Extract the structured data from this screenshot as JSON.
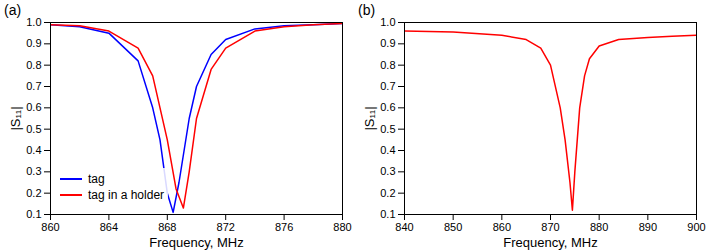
{
  "chart_data": [
    {
      "type": "line",
      "title": "(a)",
      "xlabel": "Frequency, MHz",
      "ylabel": "|S₁₁|",
      "xlim": [
        860,
        880
      ],
      "xticks": [
        860,
        864,
        868,
        872,
        876,
        880
      ],
      "ylim": [
        0.1,
        1.0
      ],
      "yticks": [
        0.1,
        0.2,
        0.3,
        0.4,
        0.5,
        0.6,
        0.7,
        0.8,
        0.9,
        {
          "value": 1,
          "label": "1.0"
        }
      ],
      "grid": false,
      "legend": "lower left",
      "series": [
        {
          "name": "tag",
          "color": "#0000ff",
          "x": [
            860,
            862,
            864,
            866,
            867,
            867.5,
            868,
            868.4,
            868.8,
            869.5,
            870,
            871,
            872,
            874,
            876,
            878,
            880
          ],
          "values": [
            0.99,
            0.98,
            0.95,
            0.82,
            0.6,
            0.45,
            0.2,
            0.11,
            0.25,
            0.55,
            0.7,
            0.85,
            0.92,
            0.97,
            0.985,
            0.99,
            0.995
          ]
        },
        {
          "name": "tag in a holder",
          "color": "#ff0000",
          "x": [
            860,
            862,
            864,
            866,
            867,
            868,
            868.6,
            869.1,
            869.5,
            870,
            871,
            872,
            874,
            876,
            878,
            880
          ],
          "values": [
            0.99,
            0.985,
            0.96,
            0.88,
            0.75,
            0.45,
            0.22,
            0.13,
            0.3,
            0.55,
            0.78,
            0.88,
            0.96,
            0.98,
            0.99,
            0.995
          ]
        }
      ]
    },
    {
      "type": "line",
      "title": "(b)",
      "xlabel": "Frequency, MHz",
      "ylabel": "|S₁₁|",
      "xlim": [
        840,
        900
      ],
      "xticks": [
        840,
        850,
        860,
        870,
        880,
        890,
        900
      ],
      "ylim": [
        0.1,
        1.0
      ],
      "yticks": [
        0.1,
        0.2,
        0.3,
        0.4,
        0.5,
        0.6,
        0.7,
        0.8,
        0.9,
        {
          "value": 1,
          "label": "1.0"
        }
      ],
      "grid": false,
      "series": [
        {
          "color": "#ff0000",
          "x": [
            840,
            850,
            860,
            865,
            868,
            870,
            872,
            873,
            874,
            874.5,
            875,
            876,
            877,
            878,
            880,
            884,
            890,
            895,
            900
          ],
          "values": [
            0.96,
            0.955,
            0.94,
            0.92,
            0.88,
            0.8,
            0.6,
            0.45,
            0.25,
            0.12,
            0.3,
            0.6,
            0.75,
            0.83,
            0.89,
            0.92,
            0.93,
            0.935,
            0.94
          ]
        }
      ]
    }
  ]
}
